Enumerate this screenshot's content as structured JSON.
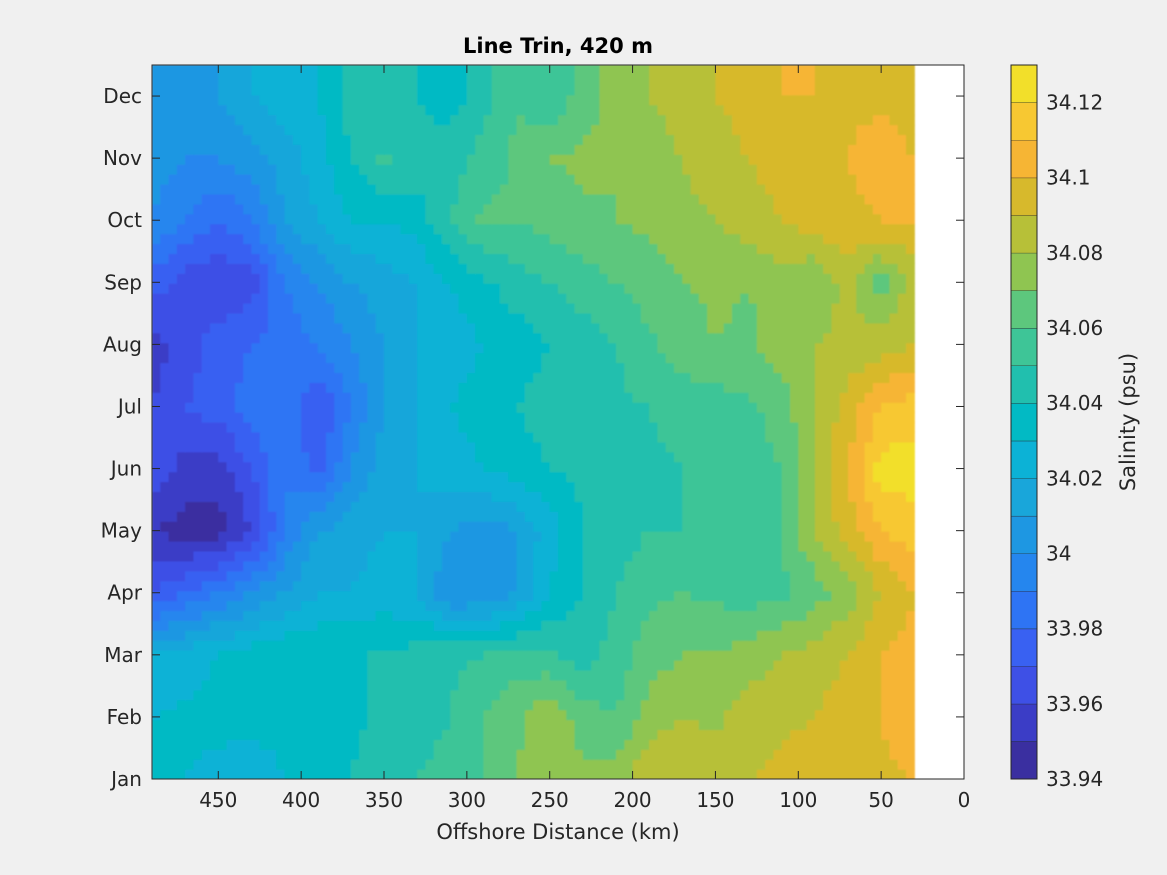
{
  "chart_data": {
    "type": "heatmap",
    "subtype": "filled-contour",
    "title": "Line Trin, 420 m",
    "xlabel": "Offshore Distance (km)",
    "ylabel": "",
    "xlim": [
      490,
      0
    ],
    "x_reversed": true,
    "x_ticks": [
      450,
      400,
      350,
      300,
      250,
      200,
      150,
      100,
      50,
      0
    ],
    "x_tick_labels": [
      "450",
      "400",
      "350",
      "300",
      "250",
      "200",
      "150",
      "100",
      "50",
      "0"
    ],
    "y_categories": [
      "Jan",
      "Feb",
      "Mar",
      "Apr",
      "May",
      "Jun",
      "Jul",
      "Aug",
      "Sep",
      "Oct",
      "Nov",
      "Dec"
    ],
    "data_x_extent": [
      490,
      30
    ],
    "colorbar": {
      "label": "Salinity (psu)",
      "range": [
        33.94,
        34.13
      ],
      "tick_values": [
        33.94,
        33.96,
        33.98,
        34,
        34.02,
        34.04,
        34.06,
        34.08,
        34.1,
        34.12
      ],
      "tick_labels": [
        "33.94",
        "33.96",
        "33.98",
        "34",
        "34.02",
        "34.04",
        "34.06",
        "34.08",
        "34.1",
        "34.12"
      ],
      "levels": [
        {
          "lo": 33.94,
          "hi": 33.95,
          "color": "#3a2fa0"
        },
        {
          "lo": 33.95,
          "hi": 33.96,
          "color": "#3b3dc6"
        },
        {
          "lo": 33.96,
          "hi": 33.97,
          "color": "#3e50e6"
        },
        {
          "lo": 33.97,
          "hi": 33.98,
          "color": "#3961f2"
        },
        {
          "lo": 33.98,
          "hi": 33.99,
          "color": "#2e74f4"
        },
        {
          "lo": 33.99,
          "hi": 34.0,
          "color": "#2586ee"
        },
        {
          "lo": 34.0,
          "hi": 34.01,
          "color": "#1e97e2"
        },
        {
          "lo": 34.01,
          "hi": 34.02,
          "color": "#19a6da"
        },
        {
          "lo": 34.02,
          "hi": 34.03,
          "color": "#0cb2d6"
        },
        {
          "lo": 34.03,
          "hi": 34.04,
          "color": "#02bac4"
        },
        {
          "lo": 34.04,
          "hi": 34.05,
          "color": "#21bfae"
        },
        {
          "lo": 34.05,
          "hi": 34.06,
          "color": "#3ec597"
        },
        {
          "lo": 34.06,
          "hi": 34.07,
          "color": "#5dc77d"
        },
        {
          "lo": 34.07,
          "hi": 34.08,
          "color": "#8fc551"
        },
        {
          "lo": 34.08,
          "hi": 34.09,
          "color": "#b7c038"
        },
        {
          "lo": 34.09,
          "hi": 34.1,
          "color": "#d7b92c"
        },
        {
          "lo": 34.1,
          "hi": 34.11,
          "color": "#f6b534"
        },
        {
          "lo": 34.11,
          "hi": 34.12,
          "color": "#f7c832"
        },
        {
          "lo": 34.12,
          "hi": 34.13,
          "color": "#f2df2a"
        }
      ]
    },
    "grid": false,
    "salinity_samples": {
      "x_km": [
        490,
        470,
        450,
        430,
        410,
        390,
        370,
        350,
        330,
        310,
        290,
        270,
        250,
        230,
        210,
        190,
        170,
        150,
        130,
        110,
        90,
        70,
        50,
        30
      ],
      "rows": [
        {
          "month": "Jan",
          "values": [
            34.03,
            34.03,
            34.025,
            34.02,
            34.03,
            34.035,
            34.04,
            34.045,
            34.05,
            34.055,
            34.06,
            34.07,
            34.075,
            34.072,
            34.075,
            34.09,
            34.09,
            34.085,
            34.09,
            34.093,
            34.096,
            34.097,
            34.098,
            34.1
          ]
        },
        {
          "month": "Feb",
          "values": [
            34.03,
            34.032,
            34.035,
            34.035,
            34.035,
            34.035,
            34.038,
            34.042,
            34.045,
            34.05,
            34.06,
            34.068,
            34.078,
            34.065,
            34.06,
            34.075,
            34.08,
            34.078,
            34.085,
            34.088,
            34.09,
            34.095,
            34.1,
            34.11
          ]
        },
        {
          "month": "Mar",
          "values": [
            34.02,
            34.025,
            34.03,
            34.035,
            34.04,
            34.04,
            34.04,
            34.04,
            34.045,
            34.048,
            34.05,
            34.055,
            34.052,
            34.045,
            34.055,
            34.065,
            34.07,
            34.07,
            34.075,
            34.08,
            34.085,
            34.09,
            34.1,
            34.105
          ]
        },
        {
          "month": "Apr",
          "values": [
            33.97,
            33.98,
            33.99,
            34.0,
            34.01,
            34.02,
            34.02,
            34.025,
            34.02,
            34.0,
            34.0,
            34.01,
            34.03,
            34.04,
            34.05,
            34.058,
            34.06,
            34.058,
            34.055,
            34.058,
            34.065,
            34.075,
            34.09,
            34.1
          ]
        },
        {
          "month": "May",
          "values": [
            33.95,
            33.945,
            33.945,
            33.96,
            33.99,
            34.01,
            34.015,
            34.02,
            34.02,
            34.01,
            34.005,
            34.01,
            34.025,
            34.04,
            34.045,
            34.05,
            34.05,
            34.05,
            34.055,
            34.06,
            34.08,
            34.095,
            34.11,
            34.115
          ]
        },
        {
          "month": "Jun",
          "values": [
            33.97,
            33.955,
            33.955,
            33.97,
            33.99,
            33.975,
            34.0,
            34.015,
            34.02,
            34.025,
            34.03,
            34.035,
            34.04,
            34.042,
            34.045,
            34.048,
            34.05,
            34.052,
            34.055,
            34.06,
            34.08,
            34.1,
            34.125,
            34.125
          ]
        },
        {
          "month": "Jul",
          "values": [
            33.96,
            33.97,
            33.975,
            33.985,
            33.99,
            33.97,
            33.99,
            34.01,
            34.02,
            34.03,
            34.035,
            34.04,
            34.045,
            34.045,
            34.048,
            34.05,
            34.055,
            34.055,
            34.058,
            34.065,
            34.08,
            34.095,
            34.11,
            34.115
          ]
        },
        {
          "month": "Aug",
          "values": [
            33.955,
            33.965,
            33.975,
            33.98,
            33.985,
            33.99,
            34.0,
            34.01,
            34.02,
            34.025,
            34.03,
            34.035,
            34.04,
            34.045,
            34.05,
            34.058,
            34.065,
            34.07,
            34.068,
            34.075,
            34.08,
            34.082,
            34.085,
            34.09
          ]
        },
        {
          "month": "Sep",
          "values": [
            33.975,
            33.965,
            33.96,
            33.965,
            33.99,
            34.0,
            34.01,
            34.015,
            34.02,
            34.03,
            34.038,
            34.045,
            34.05,
            34.055,
            34.06,
            34.065,
            34.07,
            34.072,
            34.07,
            34.075,
            34.07,
            34.085,
            34.065,
            34.085
          ]
        },
        {
          "month": "Oct",
          "values": [
            34.0,
            33.99,
            33.98,
            33.99,
            34.01,
            34.02,
            34.03,
            34.03,
            34.035,
            34.05,
            34.062,
            34.06,
            34.065,
            34.068,
            34.07,
            34.072,
            34.078,
            34.08,
            34.085,
            34.09,
            34.095,
            34.098,
            34.1,
            34.1
          ]
        },
        {
          "month": "Nov",
          "values": [
            34.005,
            34.0,
            34.0,
            34.005,
            34.015,
            34.025,
            34.04,
            34.052,
            34.045,
            34.045,
            34.055,
            34.062,
            34.07,
            34.072,
            34.07,
            34.075,
            34.08,
            34.085,
            34.09,
            34.095,
            34.098,
            34.1,
            34.105,
            34.1
          ]
        },
        {
          "month": "Dec",
          "values": [
            34.0,
            34.005,
            34.01,
            34.02,
            34.025,
            34.03,
            34.045,
            34.04,
            34.04,
            34.035,
            34.045,
            34.06,
            34.05,
            34.065,
            34.075,
            34.08,
            34.085,
            34.09,
            34.095,
            34.1,
            34.1,
            34.098,
            34.098,
            34.095
          ]
        }
      ]
    }
  }
}
